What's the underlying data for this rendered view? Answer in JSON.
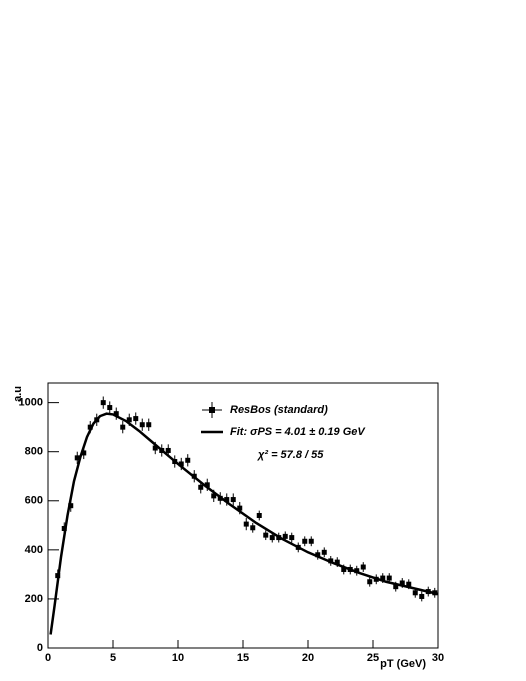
{
  "chart_data": {
    "type": "scatter",
    "xlabel": "pT (GeV)",
    "ylabel": "a.u",
    "xlim": [
      0,
      30
    ],
    "ylim": [
      0,
      1080
    ],
    "xticks": [
      0,
      5,
      10,
      15,
      20,
      25,
      30
    ],
    "yticks": [
      0,
      200,
      400,
      600,
      800,
      1000
    ],
    "series": [
      {
        "name": "ResBos (standard)",
        "color": "#000000",
        "kind": "points",
        "x": [
          0.75,
          1.25,
          1.75,
          2.25,
          2.75,
          3.25,
          3.75,
          4.25,
          4.75,
          5.25,
          5.75,
          6.25,
          6.75,
          7.25,
          7.75,
          8.25,
          8.75,
          9.25,
          9.75,
          10.25,
          10.75,
          11.25,
          11.75,
          12.25,
          12.75,
          13.25,
          13.75,
          14.25,
          14.75,
          15.25,
          15.75,
          16.25,
          16.75,
          17.25,
          17.75,
          18.25,
          18.75,
          19.25,
          19.75,
          20.25,
          20.75,
          21.25,
          21.75,
          22.25,
          22.75,
          23.25,
          23.75,
          24.25,
          24.75,
          25.25,
          25.75,
          26.25,
          26.75,
          27.25,
          27.75,
          28.25,
          28.75,
          29.25,
          29.75
        ],
        "values": [
          295,
          487,
          580,
          775,
          795,
          900,
          930,
          1000,
          980,
          955,
          900,
          930,
          935,
          910,
          910,
          815,
          805,
          805,
          760,
          750,
          765,
          700,
          655,
          665,
          620,
          610,
          605,
          605,
          570,
          505,
          490,
          540,
          460,
          450,
          450,
          455,
          450,
          410,
          435,
          435,
          380,
          390,
          355,
          350,
          320,
          320,
          315,
          330,
          270,
          280,
          285,
          285,
          250,
          265,
          260,
          225,
          210,
          230,
          225
        ],
        "errors": [
          25,
          25,
          25,
          25,
          25,
          25,
          25,
          25,
          25,
          25,
          25,
          25,
          25,
          25,
          25,
          25,
          25,
          25,
          25,
          25,
          25,
          25,
          25,
          25,
          25,
          25,
          25,
          25,
          25,
          25,
          20,
          20,
          20,
          20,
          20,
          20,
          20,
          20,
          20,
          20,
          20,
          20,
          20,
          20,
          20,
          20,
          20,
          20,
          20,
          20,
          20,
          20,
          20,
          20,
          20,
          20,
          20,
          20,
          20
        ]
      },
      {
        "name": "Fit: σPS = 4.01 ± 0.19 GeV",
        "color": "#000000",
        "kind": "line",
        "x": [
          0.2,
          0.5,
          1,
          1.5,
          2,
          2.5,
          3,
          3.5,
          4,
          4.5,
          5,
          6,
          7,
          8,
          9,
          10,
          12,
          14,
          16,
          18,
          20,
          22,
          24,
          26,
          28,
          30
        ],
        "values": [
          55,
          170,
          370,
          540,
          680,
          780,
          860,
          915,
          945,
          955,
          952,
          925,
          885,
          840,
          795,
          750,
          665,
          585,
          510,
          445,
          390,
          345,
          305,
          270,
          245,
          220
        ]
      }
    ],
    "annotation": "χ² = 57.8 / 55"
  }
}
